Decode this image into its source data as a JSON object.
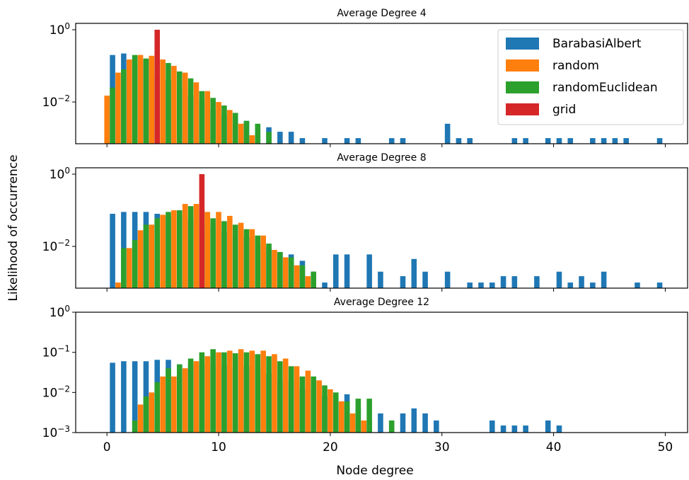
{
  "figure": {
    "ylabel": "Likelihood of occurrence",
    "xlabel": "Node degree",
    "colors": {
      "BarabasiAlbert": "#1f77b4",
      "random": "#ff7f0e",
      "randomEuclidean": "#2ca02c",
      "grid": "#d62728"
    }
  },
  "chart_data": [
    {
      "type": "bar",
      "title": "Average Degree 4",
      "yscale": "log",
      "ylim": [
        0.0007,
        1.5
      ],
      "xlim": [
        -2.8,
        52
      ],
      "yticks": [
        {
          "v": 1,
          "label": "10^0"
        },
        {
          "v": 0.01,
          "label": "10^-2"
        }
      ],
      "xticks": [
        0,
        10,
        20,
        30,
        40,
        50
      ],
      "legend": {
        "position": "top-right",
        "entries": [
          "BarabasiAlbert",
          "random",
          "randomEuclidean",
          "grid"
        ]
      },
      "series": [
        {
          "name": "BarabasiAlbert",
          "points": [
            [
              1,
              0.2
            ],
            [
              2,
              0.22
            ],
            [
              3,
              0.18
            ],
            [
              4,
              0.15
            ],
            [
              5,
              0.055
            ],
            [
              6,
              0.04
            ],
            [
              7,
              0.025
            ],
            [
              8,
              0.015
            ],
            [
              9,
              0.01
            ],
            [
              10,
              0.006
            ],
            [
              11,
              0.0045
            ],
            [
              12,
              0.004
            ],
            [
              13,
              0.003
            ],
            [
              14,
              0.002
            ],
            [
              15,
              0.002
            ],
            [
              16,
              0.0015
            ],
            [
              17,
              0.0015
            ],
            [
              18,
              0.001
            ],
            [
              20,
              0.001
            ],
            [
              22,
              0.001
            ],
            [
              23,
              0.001
            ],
            [
              26,
              0.001
            ],
            [
              27,
              0.001
            ],
            [
              31,
              0.0025
            ],
            [
              32,
              0.001
            ],
            [
              33,
              0.001
            ],
            [
              37,
              0.001
            ],
            [
              38,
              0.001
            ],
            [
              40,
              0.001
            ],
            [
              41,
              0.001
            ],
            [
              42,
              0.001
            ],
            [
              44,
              0.001
            ],
            [
              45,
              0.001
            ],
            [
              46,
              0.001
            ],
            [
              47,
              0.001
            ],
            [
              50,
              0.001
            ]
          ]
        },
        {
          "name": "random",
          "points": [
            [
              0,
              0.015
            ],
            [
              1,
              0.065
            ],
            [
              2,
              0.15
            ],
            [
              3,
              0.2
            ],
            [
              4,
              0.19
            ],
            [
              5,
              0.15
            ],
            [
              6,
              0.1
            ],
            [
              7,
              0.065
            ],
            [
              8,
              0.035
            ],
            [
              9,
              0.02
            ],
            [
              10,
              0.01
            ],
            [
              11,
              0.006
            ],
            [
              12,
              0.0025
            ],
            [
              13,
              0.0012
            ]
          ]
        },
        {
          "name": "randomEuclidean",
          "points": [
            [
              0,
              0.025
            ],
            [
              1,
              0.08
            ],
            [
              2,
              0.2
            ],
            [
              3,
              0.16
            ],
            [
              4,
              0.18
            ],
            [
              5,
              0.12
            ],
            [
              6,
              0.07
            ],
            [
              7,
              0.045
            ],
            [
              8,
              0.02
            ],
            [
              9,
              0.013
            ],
            [
              10,
              0.008
            ],
            [
              11,
              0.005
            ],
            [
              12,
              0.003
            ],
            [
              13,
              0.0025
            ],
            [
              14,
              0.0015
            ]
          ]
        },
        {
          "name": "grid",
          "points": [
            [
              4,
              1
            ]
          ]
        }
      ]
    },
    {
      "type": "bar",
      "title": "Average Degree 8",
      "yscale": "log",
      "ylim": [
        0.0007,
        1.5
      ],
      "xlim": [
        -2.8,
        52
      ],
      "yticks": [
        {
          "v": 1,
          "label": "10^0"
        },
        {
          "v": 0.01,
          "label": "10^-2"
        }
      ],
      "xticks": [
        0,
        10,
        20,
        30,
        40,
        50
      ],
      "series": [
        {
          "name": "BarabasiAlbert",
          "points": [
            [
              1,
              0.08
            ],
            [
              2,
              0.09
            ],
            [
              3,
              0.09
            ],
            [
              4,
              0.09
            ],
            [
              5,
              0.08
            ],
            [
              6,
              0.07
            ],
            [
              7,
              0.07
            ],
            [
              8,
              0.055
            ],
            [
              9,
              0.04
            ],
            [
              10,
              0.035
            ],
            [
              11,
              0.025
            ],
            [
              12,
              0.02
            ],
            [
              13,
              0.018
            ],
            [
              14,
              0.012
            ],
            [
              15,
              0.01
            ],
            [
              16,
              0.007
            ],
            [
              17,
              0.006
            ],
            [
              18,
              0.004
            ],
            [
              19,
              0.002
            ],
            [
              20,
              0.001
            ],
            [
              21,
              0.006
            ],
            [
              22,
              0.006
            ],
            [
              24,
              0.006
            ],
            [
              25,
              0.002
            ],
            [
              27,
              0.0015
            ],
            [
              28,
              0.0045
            ],
            [
              29,
              0.002
            ],
            [
              31,
              0.002
            ],
            [
              33,
              0.001
            ],
            [
              34,
              0.001
            ],
            [
              35,
              0.001
            ],
            [
              36,
              0.0015
            ],
            [
              37,
              0.0015
            ],
            [
              39,
              0.0015
            ],
            [
              41,
              0.002
            ],
            [
              42,
              0.001
            ],
            [
              43,
              0.0015
            ],
            [
              44,
              0.001
            ],
            [
              45,
              0.002
            ],
            [
              48,
              0.001
            ],
            [
              50,
              0.001
            ]
          ]
        },
        {
          "name": "random",
          "points": [
            [
              1,
              0.001
            ],
            [
              2,
              0.009
            ],
            [
              3,
              0.028
            ],
            [
              4,
              0.04
            ],
            [
              5,
              0.075
            ],
            [
              6,
              0.1
            ],
            [
              7,
              0.15
            ],
            [
              8,
              0.15
            ],
            [
              9,
              0.09
            ],
            [
              10,
              0.09
            ],
            [
              11,
              0.07
            ],
            [
              12,
              0.045
            ],
            [
              13,
              0.03
            ],
            [
              14,
              0.02
            ],
            [
              15,
              0.008
            ],
            [
              16,
              0.005
            ],
            [
              17,
              0.003
            ],
            [
              18,
              0.0015
            ]
          ]
        },
        {
          "name": "randomEuclidean",
          "points": [
            [
              1,
              0.009
            ],
            [
              2,
              0.015
            ],
            [
              3,
              0.04
            ],
            [
              4,
              0.06
            ],
            [
              5,
              0.09
            ],
            [
              6,
              0.1
            ],
            [
              7,
              0.13
            ],
            [
              8,
              0.11
            ],
            [
              9,
              0.06
            ],
            [
              10,
              0.05
            ],
            [
              11,
              0.04
            ],
            [
              12,
              0.03
            ],
            [
              13,
              0.02
            ],
            [
              14,
              0.012
            ],
            [
              15,
              0.007
            ],
            [
              16,
              0.005
            ],
            [
              17,
              0.003
            ],
            [
              18,
              0.002
            ]
          ]
        },
        {
          "name": "grid",
          "points": [
            [
              8,
              1
            ]
          ]
        }
      ]
    },
    {
      "type": "bar",
      "title": "Average Degree 12",
      "yscale": "log",
      "ylim": [
        0.001,
        1
      ],
      "xlim": [
        -2.8,
        52
      ],
      "yticks": [
        {
          "v": 1,
          "label": "10^0"
        },
        {
          "v": 0.1,
          "label": "10^-1"
        },
        {
          "v": 0.01,
          "label": "10^-2"
        },
        {
          "v": 0.001,
          "label": "10^-3"
        }
      ],
      "xticks": [
        0,
        10,
        20,
        30,
        40,
        50
      ],
      "series": [
        {
          "name": "BarabasiAlbert",
          "points": [
            [
              1,
              0.055
            ],
            [
              2,
              0.06
            ],
            [
              3,
              0.06
            ],
            [
              4,
              0.06
            ],
            [
              5,
              0.065
            ],
            [
              6,
              0.065
            ],
            [
              7,
              0.05
            ],
            [
              8,
              0.05
            ],
            [
              9,
              0.05
            ],
            [
              10,
              0.05
            ],
            [
              11,
              0.045
            ],
            [
              12,
              0.04
            ],
            [
              13,
              0.045
            ],
            [
              14,
              0.04
            ],
            [
              15,
              0.03
            ],
            [
              16,
              0.02
            ],
            [
              17,
              0.02
            ],
            [
              18,
              0.012
            ],
            [
              19,
              0.012
            ],
            [
              20,
              0.008
            ],
            [
              21,
              0.006
            ],
            [
              22,
              0.009
            ],
            [
              23,
              0.004
            ],
            [
              24,
              0.002
            ],
            [
              25,
              0.003
            ],
            [
              26,
              0.002
            ],
            [
              27,
              0.003
            ],
            [
              28,
              0.004
            ],
            [
              29,
              0.003
            ],
            [
              30,
              0.002
            ],
            [
              32,
              0.001
            ],
            [
              34,
              0.001
            ],
            [
              35,
              0.002
            ],
            [
              36,
              0.0015
            ],
            [
              37,
              0.0015
            ],
            [
              38,
              0.0015
            ],
            [
              40,
              0.002
            ],
            [
              41,
              0.0015
            ],
            [
              42,
              0.001
            ],
            [
              44,
              0.001
            ],
            [
              46,
              0.001
            ],
            [
              48,
              0.001
            ],
            [
              49,
              0.001
            ]
          ]
        },
        {
          "name": "random",
          "points": [
            [
              3,
              0.005
            ],
            [
              4,
              0.01
            ],
            [
              5,
              0.025
            ],
            [
              6,
              0.025
            ],
            [
              7,
              0.04
            ],
            [
              8,
              0.06
            ],
            [
              9,
              0.08
            ],
            [
              10,
              0.1
            ],
            [
              11,
              0.11
            ],
            [
              12,
              0.12
            ],
            [
              13,
              0.11
            ],
            [
              14,
              0.11
            ],
            [
              15,
              0.09
            ],
            [
              16,
              0.07
            ],
            [
              17,
              0.045
            ],
            [
              18,
              0.035
            ],
            [
              19,
              0.02
            ],
            [
              20,
              0.012
            ],
            [
              21,
              0.006
            ],
            [
              22,
              0.003
            ],
            [
              23,
              0.002
            ]
          ]
        },
        {
          "name": "randomEuclidean",
          "points": [
            [
              2,
              0.002
            ],
            [
              3,
              0.008
            ],
            [
              4,
              0.018
            ],
            [
              5,
              0.04
            ],
            [
              6,
              0.05
            ],
            [
              7,
              0.07
            ],
            [
              8,
              0.1
            ],
            [
              9,
              0.12
            ],
            [
              10,
              0.1
            ],
            [
              11,
              0.095
            ],
            [
              12,
              0.1
            ],
            [
              13,
              0.09
            ],
            [
              14,
              0.08
            ],
            [
              15,
              0.06
            ],
            [
              16,
              0.045
            ],
            [
              17,
              0.025
            ],
            [
              18,
              0.025
            ],
            [
              19,
              0.015
            ],
            [
              20,
              0.01
            ],
            [
              21,
              0.006
            ],
            [
              22,
              0.007
            ],
            [
              23,
              0.007
            ],
            [
              25,
              0.002
            ]
          ]
        }
      ]
    }
  ]
}
